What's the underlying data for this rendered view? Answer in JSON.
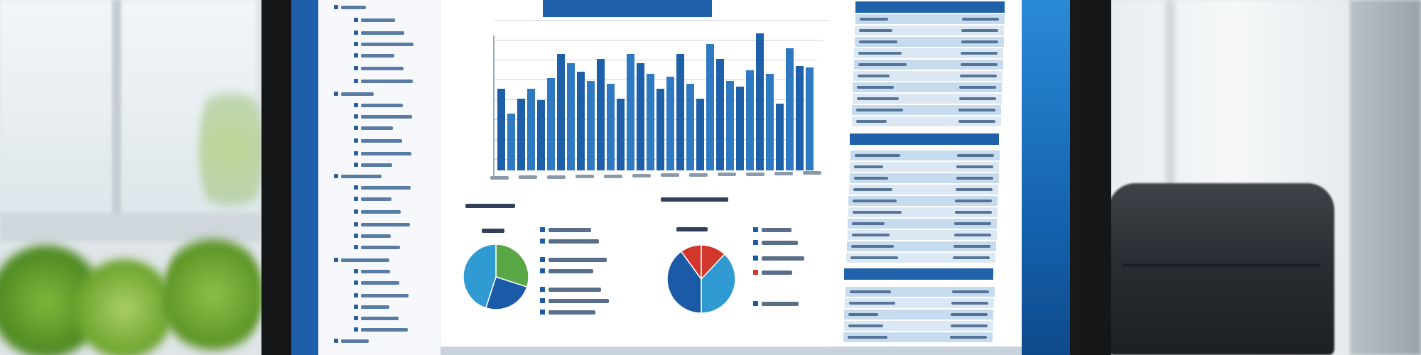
{
  "scene": {
    "description_colors": {
      "screen_blue": "#1f62ab",
      "bar_blue": "#1d5fa8",
      "pie_green": "#5aa845",
      "pie_red": "#d2372e",
      "pie_light_blue": "#2f9bd2",
      "pie_dark_blue": "#1a5aa6"
    },
    "pies": [
      {
        "slices": [
          {
            "value": 30,
            "color": "#5aa845"
          },
          {
            "value": 25,
            "color": "#1a5aa6"
          },
          {
            "value": 45,
            "color": "#2f9bd2"
          }
        ]
      },
      {
        "slices": [
          {
            "value": 12,
            "color": "#d2372e"
          },
          {
            "value": 38,
            "color": "#2f9bd2"
          },
          {
            "value": 40,
            "color": "#1a5aa6"
          },
          {
            "value": 10,
            "color": "#d2372e"
          }
        ]
      }
    ],
    "bars": [
      55,
      38,
      48,
      55,
      47,
      62,
      78,
      72,
      66,
      60,
      75,
      58,
      48,
      78,
      72,
      65,
      55,
      63,
      78,
      58,
      48,
      85,
      75,
      60,
      56,
      67,
      92,
      65,
      45,
      82,
      70,
      69
    ]
  }
}
